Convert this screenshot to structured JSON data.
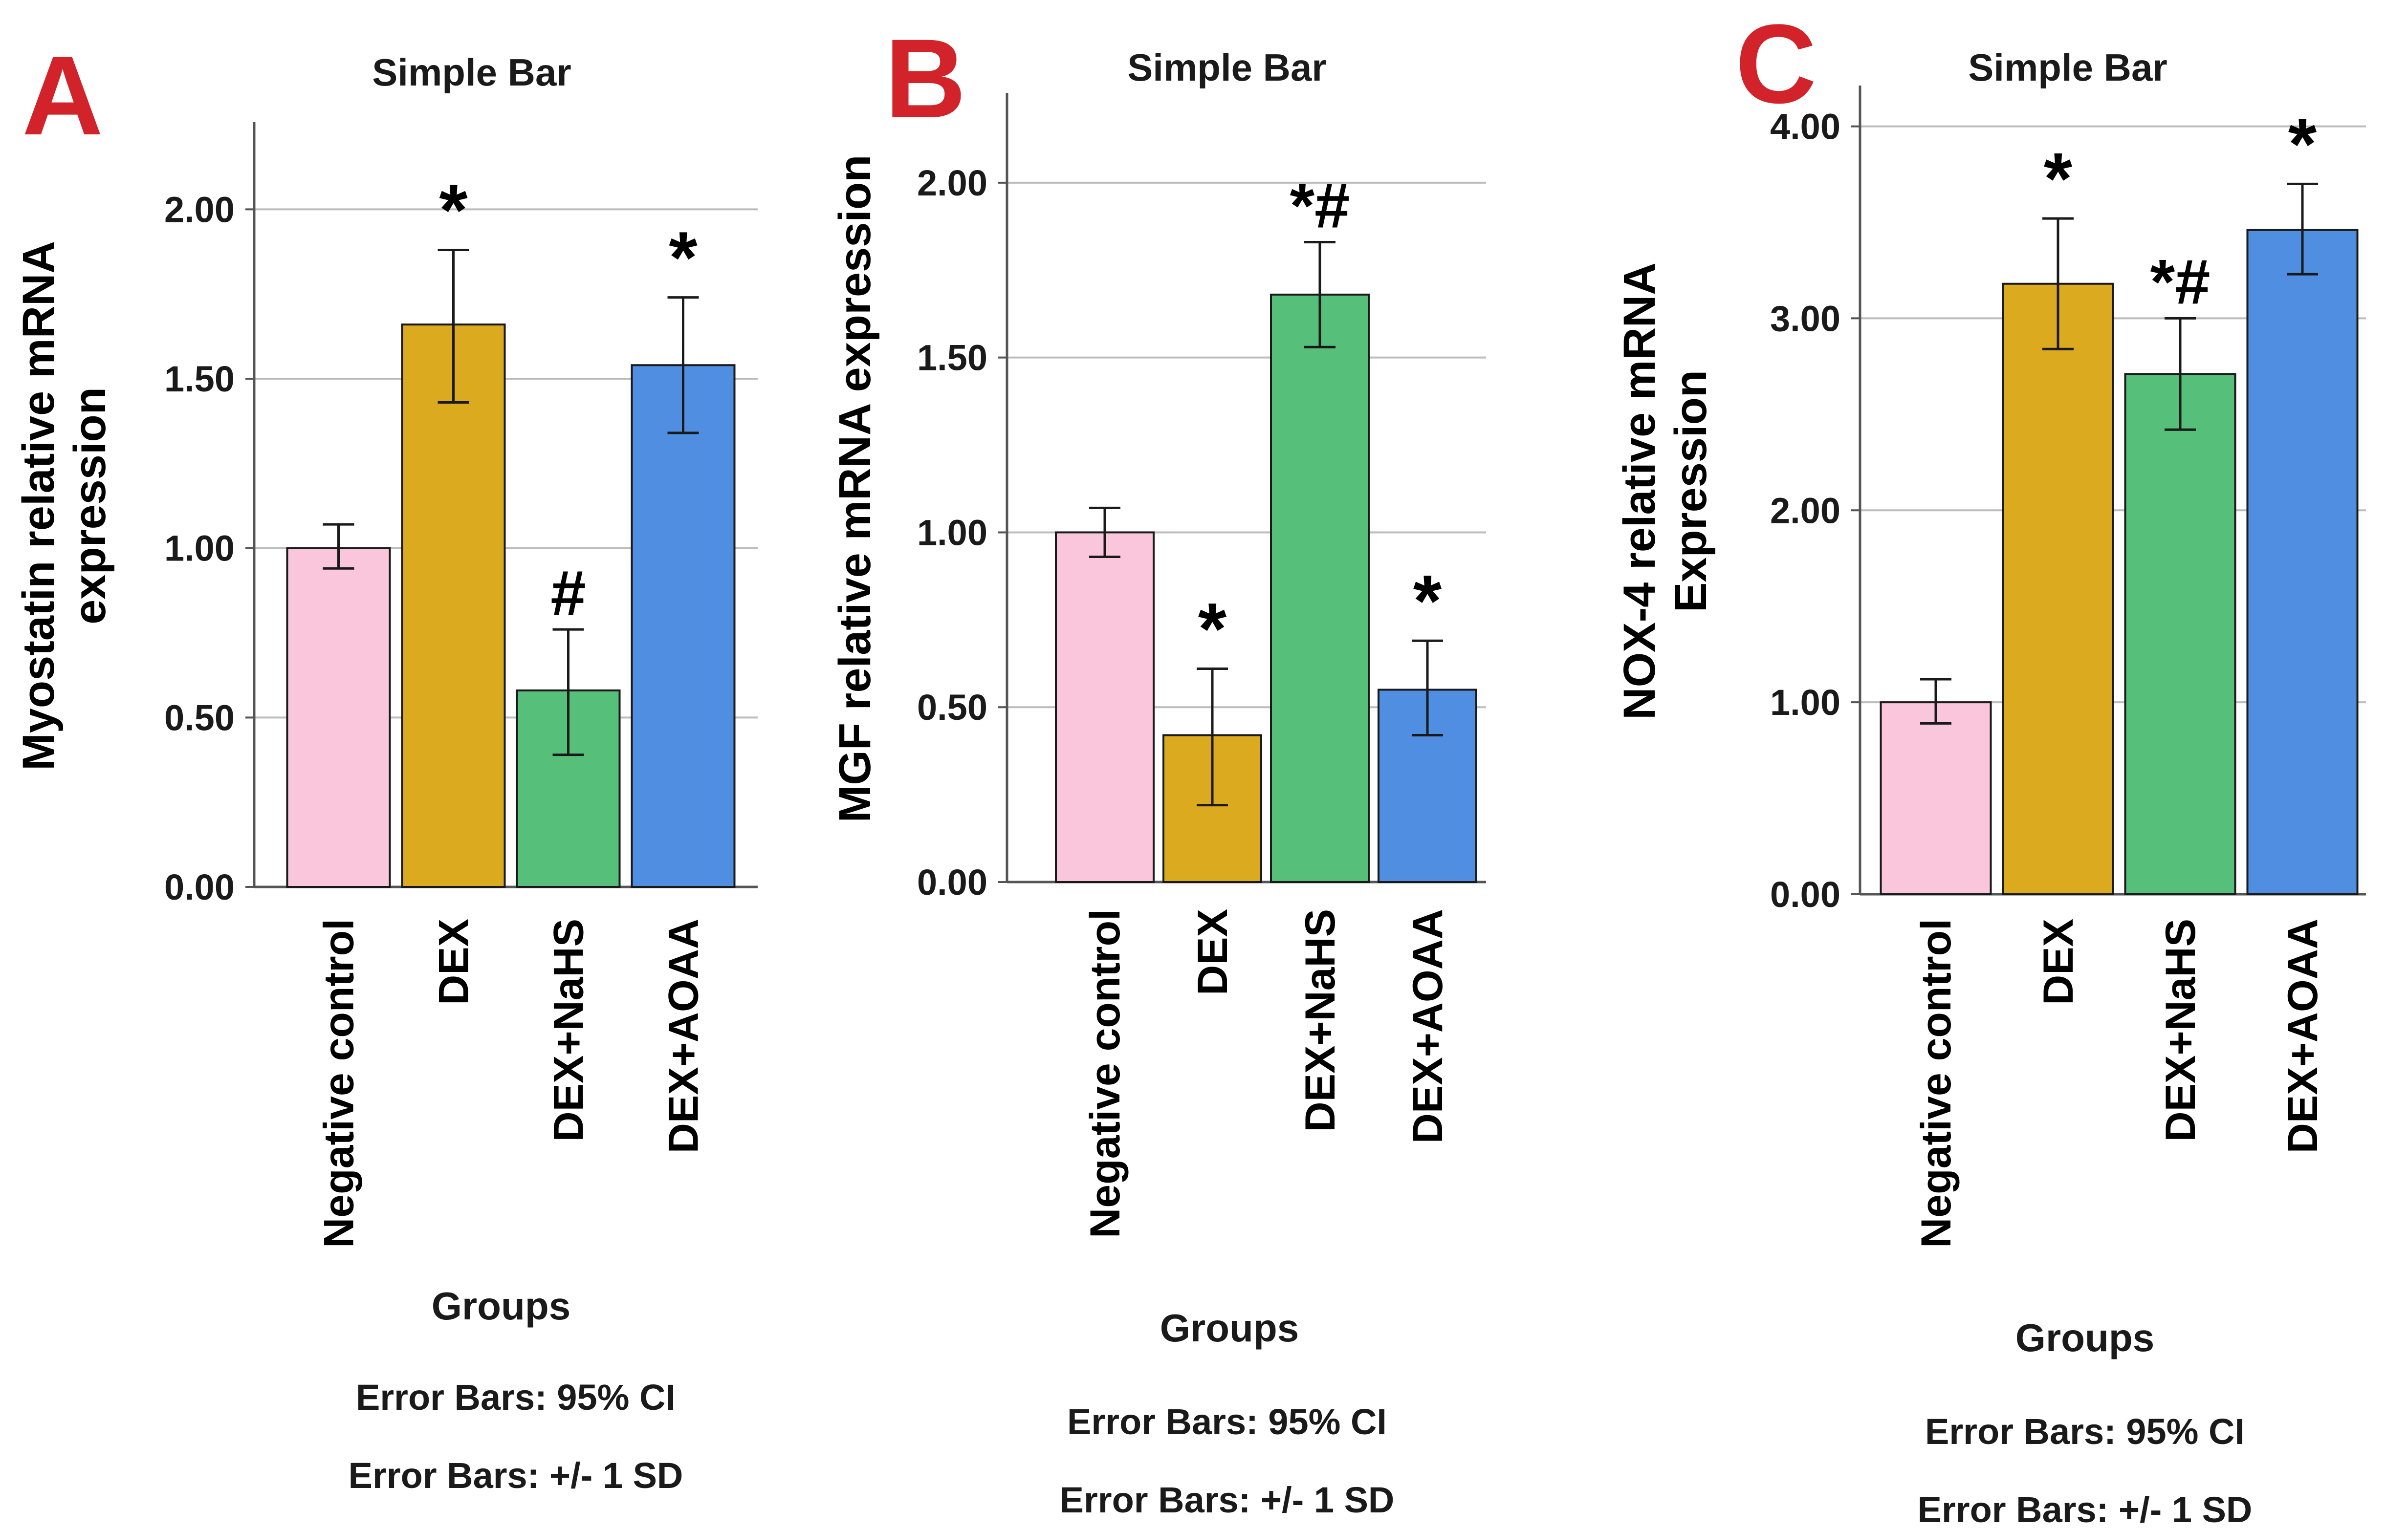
{
  "colors": {
    "panel_letter": "#d2232a",
    "Negative control": "#f9c6dc",
    "DEX": "#dcaa1e",
    "DEX+NaHS": "#56c07b",
    "DEX+AOAA": "#4f8ee0",
    "grid": "#bdbdbd",
    "axis": "#555555",
    "error_bar": "#1a1a1a",
    "bar_outline": "#1a1a1a"
  },
  "chart_data": [
    {
      "panel": "A",
      "type": "bar",
      "title": "Simple Bar",
      "xlabel": "Groups",
      "ylabel": [
        "Myostatin relative mRNA",
        "expression"
      ],
      "ylim": [
        0,
        2.25
      ],
      "yticks": [
        0,
        0.5,
        1,
        1.5,
        2
      ],
      "ytick_labels": [
        "0.00",
        "0.50",
        "1.00",
        "1.50",
        "2.00"
      ],
      "grid": true,
      "categories": [
        "Negative control",
        "DEX",
        "DEX+NaHS",
        "DEX+AOAA"
      ],
      "values": [
        1.0,
        1.66,
        0.58,
        1.54
      ],
      "error_low": [
        0.94,
        1.43,
        0.39,
        1.34
      ],
      "error_high": [
        1.07,
        1.88,
        0.76,
        1.74
      ],
      "annotations": [
        "",
        "*",
        "#",
        "*"
      ],
      "footnotes": [
        "Error Bars: 95% CI",
        "Error Bars: +/- 1 SD"
      ]
    },
    {
      "panel": "B",
      "type": "bar",
      "title": "Simple Bar",
      "xlabel": "Groups",
      "ylabel": [
        "MGF relative mRNA expression"
      ],
      "ylim": [
        0,
        2.25
      ],
      "yticks": [
        0,
        0.5,
        1,
        1.5,
        2
      ],
      "ytick_labels": [
        "0.00",
        "0.50",
        "1.00",
        "1.50",
        "2.00"
      ],
      "grid": true,
      "categories": [
        "Negative control",
        "DEX",
        "DEX+NaHS",
        "DEX+AOAA"
      ],
      "values": [
        1.0,
        0.42,
        1.68,
        0.55
      ],
      "error_low": [
        0.93,
        0.22,
        1.53,
        0.42
      ],
      "error_high": [
        1.07,
        0.61,
        1.83,
        0.69
      ],
      "annotations": [
        "",
        "*",
        "*#",
        "*"
      ],
      "footnotes": [
        "Error Bars: 95% CI",
        "Error Bars: +/- 1 SD"
      ]
    },
    {
      "panel": "C",
      "type": "bar",
      "title": "Simple Bar",
      "xlabel": "Groups",
      "ylabel": [
        "NOX-4 relative mRNA",
        "Expression"
      ],
      "ylim": [
        0,
        4.2
      ],
      "yticks": [
        0,
        1,
        2,
        3,
        4
      ],
      "ytick_labels": [
        "0.00",
        "1.00",
        "2.00",
        "3.00",
        "4.00"
      ],
      "grid": true,
      "categories": [
        "Negative control",
        "DEX",
        "DEX+NaHS",
        "DEX+AOAA"
      ],
      "values": [
        1.0,
        3.18,
        2.71,
        3.46
      ],
      "error_low": [
        0.89,
        2.84,
        2.42,
        3.23
      ],
      "error_high": [
        1.12,
        3.52,
        3.0,
        3.7
      ],
      "annotations": [
        "",
        "*",
        "*#",
        "*"
      ],
      "footnotes": [
        "Error Bars: 95% CI",
        "Error Bars: +/- 1 SD"
      ]
    }
  ]
}
